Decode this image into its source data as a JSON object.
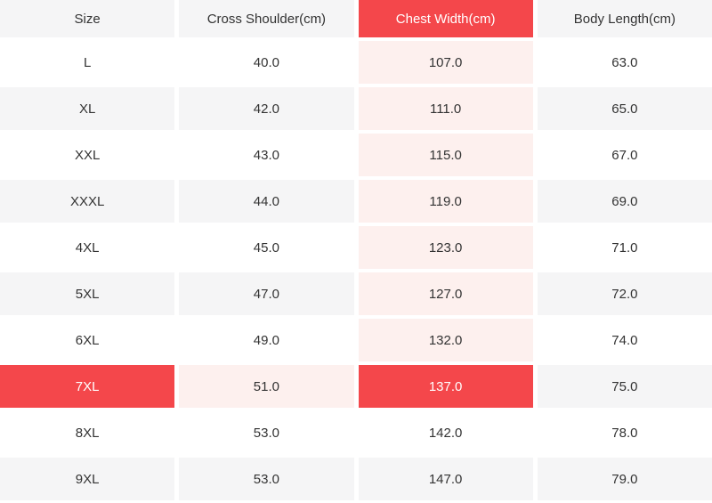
{
  "chart_data": {
    "type": "table",
    "columns": [
      {
        "key": "size",
        "label": "Size"
      },
      {
        "key": "cross_shoulder",
        "label": "Cross Shoulder(cm)"
      },
      {
        "key": "chest_width",
        "label": "Chest Width(cm)"
      },
      {
        "key": "body_length",
        "label": "Body Length(cm)"
      }
    ],
    "rows": [
      {
        "size": "L",
        "cross_shoulder": "40.0",
        "chest_width": "107.0",
        "body_length": "63.0"
      },
      {
        "size": "XL",
        "cross_shoulder": "42.0",
        "chest_width": "111.0",
        "body_length": "65.0"
      },
      {
        "size": "XXL",
        "cross_shoulder": "43.0",
        "chest_width": "115.0",
        "body_length": "67.0"
      },
      {
        "size": "XXXL",
        "cross_shoulder": "44.0",
        "chest_width": "119.0",
        "body_length": "69.0"
      },
      {
        "size": "4XL",
        "cross_shoulder": "45.0",
        "chest_width": "123.0",
        "body_length": "71.0"
      },
      {
        "size": "5XL",
        "cross_shoulder": "47.0",
        "chest_width": "127.0",
        "body_length": "72.0"
      },
      {
        "size": "6XL",
        "cross_shoulder": "49.0",
        "chest_width": "132.0",
        "body_length": "74.0"
      },
      {
        "size": "7XL",
        "cross_shoulder": "51.0",
        "chest_width": "137.0",
        "body_length": "75.0"
      },
      {
        "size": "8XL",
        "cross_shoulder": "53.0",
        "chest_width": "142.0",
        "body_length": "78.0"
      },
      {
        "size": "9XL",
        "cross_shoulder": "53.0",
        "chest_width": "147.0",
        "body_length": "79.0"
      }
    ],
    "layout": {
      "grid": "off",
      "alternating_row_shading": true,
      "equal_column_widths": true
    }
  },
  "ui": {
    "highlight": {
      "hovered_row_index": 7,
      "hovered_row_size": "7XL",
      "hovered_column_index": 2,
      "hovered_column_label": "Chest Width(cm)",
      "hovered_cell_value": "137.0"
    },
    "colors": {
      "accent_red": "#f4474b",
      "highlight_pink": "#fdf0ee",
      "row_alt_gray": "#f5f5f6",
      "text": "#333333",
      "text_on_red": "#ffffff",
      "background": "#ffffff"
    }
  }
}
